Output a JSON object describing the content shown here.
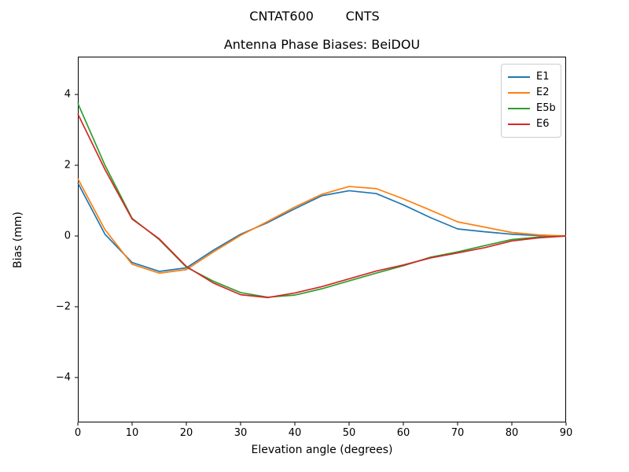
{
  "suptitle": "CNTAT600        CNTS",
  "chart_data": {
    "type": "line",
    "title": "Antenna Phase Biases: BeiDOU",
    "xlabel": "Elevation angle (degrees)",
    "ylabel": "Bias (mm)",
    "xlim": [
      0,
      90
    ],
    "ylim": [
      -5.27,
      5.07
    ],
    "x_ticks": [
      0,
      10,
      20,
      30,
      40,
      50,
      60,
      70,
      80,
      90
    ],
    "y_ticks": [
      -4,
      -2,
      0,
      2,
      4
    ],
    "grid": false,
    "legend_position": "upper right",
    "x": [
      0,
      5,
      10,
      15,
      20,
      25,
      30,
      35,
      40,
      45,
      50,
      55,
      60,
      65,
      70,
      75,
      80,
      85,
      90
    ],
    "series": [
      {
        "name": "E1",
        "color": "#1f77b4",
        "values": [
          1.5,
          0.05,
          -0.75,
          -1.0,
          -0.9,
          -0.4,
          0.05,
          0.38,
          0.77,
          1.14,
          1.28,
          1.2,
          0.88,
          0.52,
          0.2,
          0.12,
          0.05,
          0.01,
          0.0
        ]
      },
      {
        "name": "E2",
        "color": "#ff7f0e",
        "values": [
          1.62,
          0.18,
          -0.8,
          -1.05,
          -0.95,
          -0.45,
          0.02,
          0.41,
          0.82,
          1.18,
          1.4,
          1.34,
          1.05,
          0.73,
          0.4,
          0.25,
          0.1,
          0.03,
          0.0
        ]
      },
      {
        "name": "E5b",
        "color": "#2ca02c",
        "values": [
          3.75,
          2.0,
          0.5,
          -0.1,
          -0.88,
          -1.28,
          -1.6,
          -1.73,
          -1.67,
          -1.49,
          -1.27,
          -1.05,
          -0.84,
          -0.6,
          -0.45,
          -0.27,
          -0.1,
          -0.03,
          0.0
        ]
      },
      {
        "name": "E6",
        "color": "#d62728",
        "values": [
          3.45,
          1.88,
          0.48,
          -0.08,
          -0.86,
          -1.33,
          -1.66,
          -1.74,
          -1.61,
          -1.43,
          -1.21,
          -0.99,
          -0.82,
          -0.62,
          -0.48,
          -0.33,
          -0.14,
          -0.05,
          0.0
        ]
      }
    ]
  }
}
